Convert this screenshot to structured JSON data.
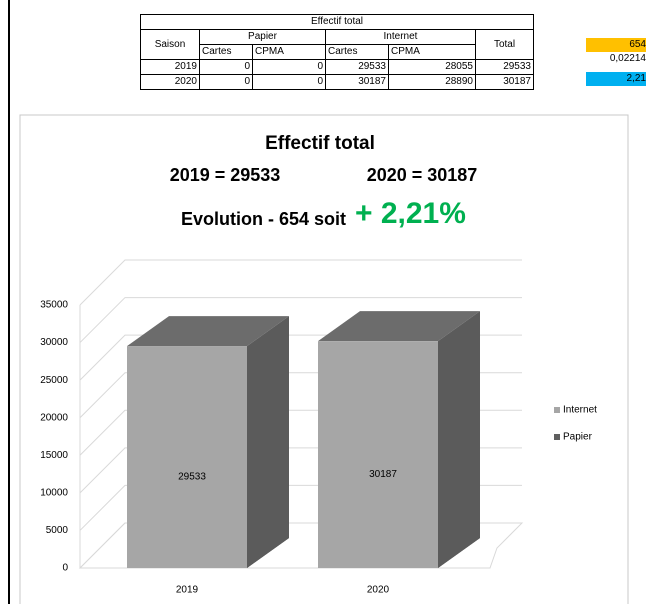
{
  "table": {
    "title": "Effectif total",
    "headers": [
      "Saison",
      "Papier",
      "Internet",
      "Total"
    ],
    "subheaders": [
      "Cartes",
      "CPMA",
      "Cartes",
      "CPMA"
    ],
    "rows": [
      [
        "2019",
        "0",
        "0",
        "29533",
        "28055",
        "29533"
      ],
      [
        "2020",
        "0",
        "0",
        "30187",
        "28890",
        "30187"
      ]
    ]
  },
  "side_cells": [
    "654",
    "0,02214",
    "2,21"
  ],
  "chart_data": {
    "type": "bar3d_stacked",
    "title": "Effectif total",
    "subtitle_left": "2019 = 29533",
    "subtitle_right": "2020 = 30187",
    "evolution": "Evolution - 654 soit",
    "evolution_pct": "+ 2,21%",
    "categories": [
      "2019",
      "2020"
    ],
    "series": [
      {
        "name": "Papier",
        "color": "#5f5f5f",
        "values": [
          0,
          0
        ]
      },
      {
        "name": "Internet",
        "color": "#a6a6a6",
        "values": [
          29533,
          30187
        ]
      }
    ],
    "ylim": [
      0,
      35000
    ],
    "yticks": [
      0,
      5000,
      10000,
      15000,
      20000,
      25000,
      30000,
      35000
    ],
    "grid": true,
    "legend": "right"
  }
}
